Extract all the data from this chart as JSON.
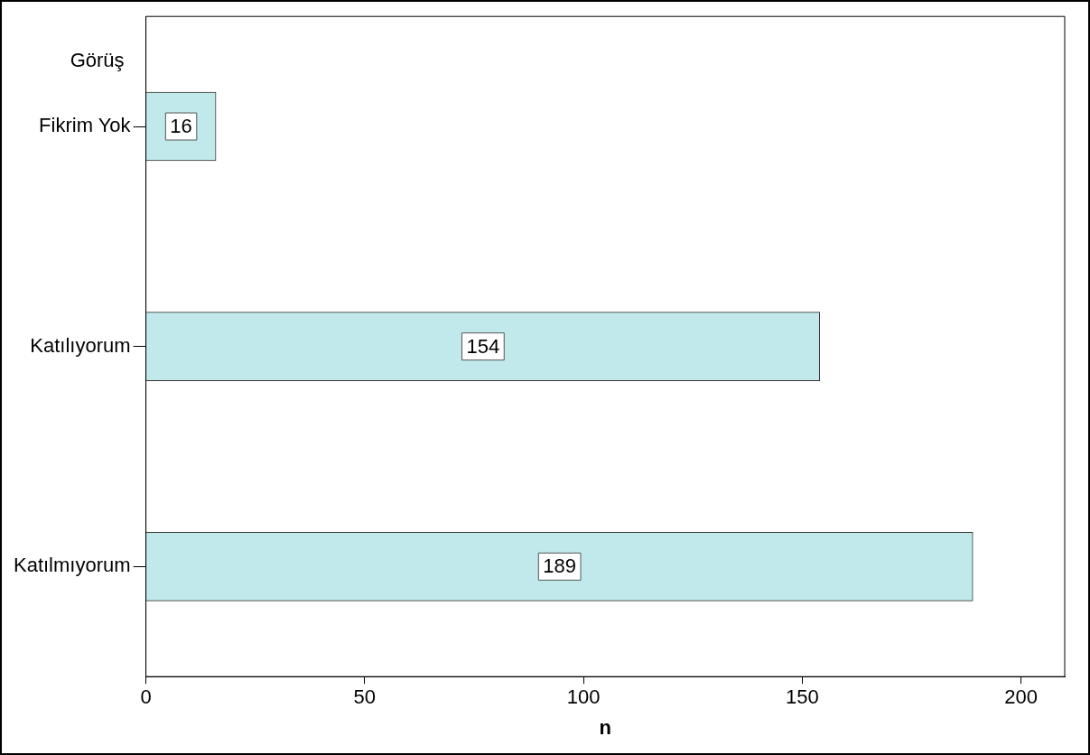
{
  "chart_data": {
    "type": "bar",
    "orientation": "horizontal",
    "ylabel": "Görüş",
    "xlabel": "n",
    "categories": [
      "Fikrim Yok",
      "Katılıyorum",
      "Katılmıyorum"
    ],
    "values": [
      16,
      154,
      189
    ],
    "color": "#c1e9eb",
    "xlim": [
      0,
      210
    ],
    "xticks": [
      0,
      50,
      100,
      150,
      200
    ],
    "grid": false,
    "legend": false,
    "data_labels": true
  }
}
